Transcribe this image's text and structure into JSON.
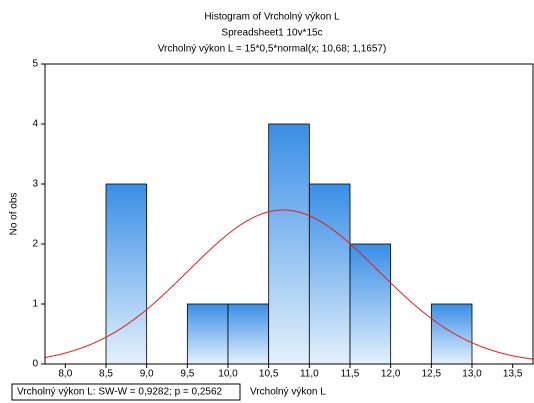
{
  "chart_data": {
    "type": "histogram",
    "title": "Histogram of Vrcholný výkon L",
    "subtitle": "Spreadsheet1 10v*15c",
    "fit_label": "Vrcholný výkon L = 15*0,5*normal(x; 10,68; 1,1657)",
    "fit": {
      "n": 15,
      "width": 0.5,
      "mean": 10.68,
      "sd": 1.1657,
      "color": "#e02020"
    },
    "bins": [
      8.0,
      8.5,
      9.0,
      9.5,
      10.0,
      10.5,
      11.0,
      11.5,
      12.0,
      12.5,
      13.0
    ],
    "values": [
      0,
      3,
      0,
      1,
      1,
      4,
      3,
      2,
      0,
      1
    ],
    "color": "#3a8ee6",
    "xlabel": "Vrcholný výkon L",
    "ylabel": "No of obs",
    "stats_label": "Vrcholný výkon L:   SW-W = 0,9282; p = 0,2562",
    "xlim": [
      7.75,
      13.75
    ],
    "ylim": [
      0,
      5
    ],
    "xticks": [
      {
        "value": 8.0,
        "label": "8,0"
      },
      {
        "value": 8.5,
        "label": "8,5"
      },
      {
        "value": 9.0,
        "label": "9,0"
      },
      {
        "value": 9.5,
        "label": "9,5"
      },
      {
        "value": 10.0,
        "label": "10,0"
      },
      {
        "value": 10.5,
        "label": "10,5"
      },
      {
        "value": 11.0,
        "label": "11,0"
      },
      {
        "value": 11.5,
        "label": "11,5"
      },
      {
        "value": 12.0,
        "label": "12,0"
      },
      {
        "value": 12.5,
        "label": "12,5"
      },
      {
        "value": 13.0,
        "label": "13,0"
      },
      {
        "value": 13.5,
        "label": "13,5"
      }
    ],
    "yticks": [
      0,
      1,
      2,
      3,
      4,
      5
    ]
  }
}
